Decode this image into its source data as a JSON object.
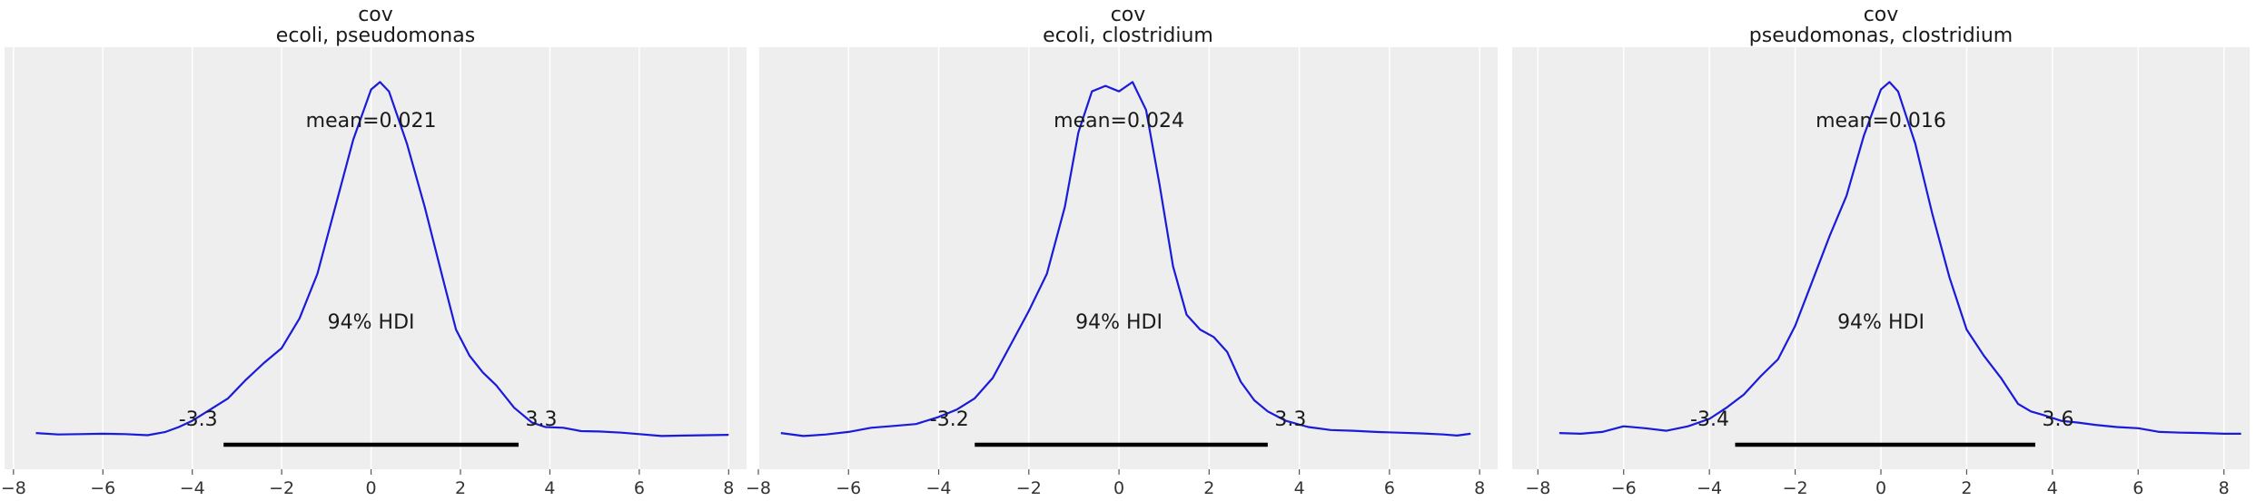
{
  "chart_data": [
    {
      "type": "line",
      "title": "cov",
      "subtitle": "ecoli, pseudomonas",
      "mean_label": "mean=0.021",
      "hdi_label": "94% HDI",
      "hdi": [
        -3.3,
        3.3
      ],
      "hdi_low_label": "-3.3",
      "hdi_high_label": "3.3",
      "xlim": [
        -8.2,
        8.4
      ],
      "xticks": [
        -8,
        -6,
        -4,
        -2,
        0,
        2,
        4,
        6,
        8
      ],
      "xtick_labels": [
        "−8",
        "−6",
        "−4",
        "−2",
        "0",
        "2",
        "4",
        "6",
        "8"
      ],
      "grid": true,
      "x": [
        -7.5,
        -7.0,
        -6.5,
        -6.0,
        -5.5,
        -5.0,
        -4.6,
        -4.3,
        -4.0,
        -3.6,
        -3.2,
        -2.8,
        -2.4,
        -2.0,
        -1.6,
        -1.2,
        -0.8,
        -0.4,
        0.0,
        0.2,
        0.4,
        0.8,
        1.2,
        1.6,
        1.9,
        2.2,
        2.5,
        2.8,
        3.2,
        3.6,
        3.9,
        4.3,
        4.7,
        5.1,
        5.6,
        6.0,
        6.5,
        7.0,
        7.5,
        8.0
      ],
      "y": [
        0.012,
        0.008,
        0.009,
        0.01,
        0.009,
        0.006,
        0.015,
        0.028,
        0.045,
        0.075,
        0.105,
        0.155,
        0.2,
        0.24,
        0.32,
        0.44,
        0.62,
        0.8,
        0.935,
        0.955,
        0.93,
        0.79,
        0.62,
        0.43,
        0.29,
        0.22,
        0.175,
        0.14,
        0.08,
        0.04,
        0.028,
        0.026,
        0.017,
        0.016,
        0.013,
        0.009,
        0.004,
        0.005,
        0.006,
        0.007
      ]
    },
    {
      "type": "line",
      "title": "cov",
      "subtitle": "ecoli, clostridium",
      "mean_label": "mean=0.024",
      "hdi_label": "94% HDI",
      "hdi": [
        -3.2,
        3.3
      ],
      "hdi_low_label": "-3.2",
      "hdi_high_label": "3.3",
      "xlim": [
        -8.0,
        8.4
      ],
      "xticks": [
        -8,
        -6,
        -4,
        -2,
        0,
        2,
        4,
        6,
        8
      ],
      "xtick_labels": [
        "−8",
        "−6",
        "−4",
        "−2",
        "0",
        "2",
        "4",
        "6",
        "8"
      ],
      "grid": true,
      "x": [
        -7.5,
        -7.0,
        -6.5,
        -6.0,
        -5.5,
        -5.0,
        -4.5,
        -4.0,
        -3.6,
        -3.2,
        -2.8,
        -2.4,
        -2.0,
        -1.6,
        -1.2,
        -0.9,
        -0.6,
        -0.3,
        0.0,
        0.3,
        0.6,
        0.9,
        1.2,
        1.5,
        1.8,
        2.1,
        2.4,
        2.7,
        3.0,
        3.3,
        3.7,
        4.2,
        4.7,
        5.2,
        5.7,
        6.2,
        6.7,
        7.2,
        7.5,
        7.8
      ],
      "y": [
        0.012,
        0.004,
        0.008,
        0.015,
        0.026,
        0.031,
        0.036,
        0.055,
        0.075,
        0.105,
        0.16,
        0.25,
        0.34,
        0.44,
        0.62,
        0.82,
        0.93,
        0.945,
        0.93,
        0.955,
        0.88,
        0.68,
        0.46,
        0.33,
        0.29,
        0.27,
        0.23,
        0.15,
        0.1,
        0.07,
        0.045,
        0.028,
        0.02,
        0.018,
        0.015,
        0.013,
        0.011,
        0.008,
        0.005,
        0.01
      ]
    },
    {
      "type": "line",
      "title": "cov",
      "subtitle": "pseudomonas, clostridium",
      "mean_label": "mean=0.016",
      "hdi_label": "94% HDI",
      "hdi": [
        -3.4,
        3.6
      ],
      "hdi_low_label": "-3.4",
      "hdi_high_label": "3.6",
      "xlim": [
        -8.6,
        8.6
      ],
      "xticks": [
        -8,
        -6,
        -4,
        -2,
        0,
        2,
        4,
        6,
        8
      ],
      "xtick_labels": [
        "−8",
        "−6",
        "−4",
        "−2",
        "0",
        "2",
        "4",
        "6",
        "8"
      ],
      "grid": true,
      "x": [
        -7.5,
        -7.0,
        -6.5,
        -6.0,
        -5.5,
        -5.0,
        -4.5,
        -4.0,
        -3.6,
        -3.2,
        -2.8,
        -2.4,
        -2.0,
        -1.6,
        -1.2,
        -0.8,
        -0.4,
        0.0,
        0.2,
        0.4,
        0.8,
        1.2,
        1.6,
        2.0,
        2.4,
        2.8,
        3.2,
        3.5,
        3.8,
        4.2,
        4.6,
        5.0,
        5.5,
        6.0,
        6.5,
        7.0,
        7.5,
        8.0,
        8.4
      ],
      "y": [
        0.012,
        0.01,
        0.015,
        0.03,
        0.025,
        0.018,
        0.03,
        0.05,
        0.08,
        0.115,
        0.165,
        0.21,
        0.3,
        0.42,
        0.54,
        0.65,
        0.81,
        0.935,
        0.955,
        0.93,
        0.79,
        0.6,
        0.43,
        0.29,
        0.22,
        0.16,
        0.09,
        0.07,
        0.06,
        0.045,
        0.04,
        0.034,
        0.028,
        0.025,
        0.015,
        0.013,
        0.012,
        0.01,
        0.01
      ]
    }
  ]
}
